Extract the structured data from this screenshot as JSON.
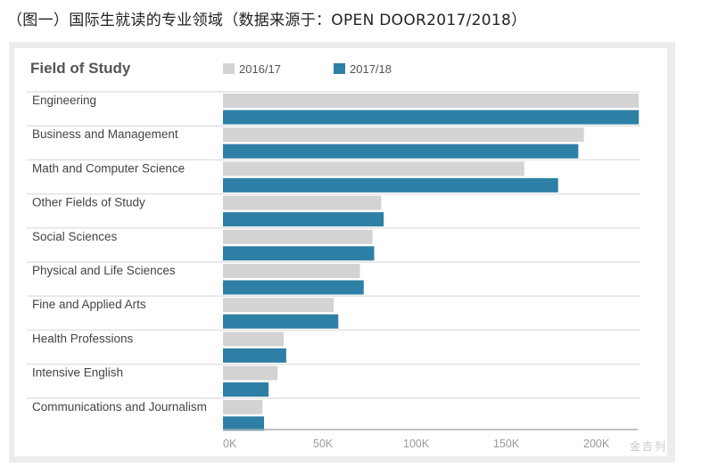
{
  "caption": "（图一）国际生就读的专业领域（数据来源于：OPEN DOOR2017/2018）",
  "watermark": "金吉列",
  "chart_data": {
    "type": "bar",
    "orientation": "horizontal",
    "title": "Field of Study",
    "categories": [
      "Engineering",
      "Business and Management",
      "Math and Computer Science",
      "Other Fields of Study",
      "Social Sciences",
      "Physical and Life Sciences",
      "Fine and Applied Arts",
      "Health Professions",
      "Intensive English",
      "Communications and Journalism"
    ],
    "series": [
      {
        "name": "2016/17",
        "color": "#d3d3d3",
        "values": [
          230.7,
          200.3,
          167.2,
          87.8,
          83.0,
          76.0,
          61.5,
          33.7,
          30.3,
          21.9
        ]
      },
      {
        "name": "2017/18",
        "color": "#2e7fa6",
        "values": [
          230.8,
          197.2,
          186.0,
          89.2,
          83.9,
          78.1,
          64.0,
          35.1,
          25.3,
          22.8
        ]
      }
    ],
    "xticks": [
      "0K",
      "50K",
      "100K",
      "150K",
      "200K"
    ],
    "xtick_values": [
      0,
      50,
      100,
      150,
      200
    ],
    "xlim": [
      0,
      230
    ],
    "unit": "thousands of students",
    "legend": "top",
    "grid": false
  }
}
